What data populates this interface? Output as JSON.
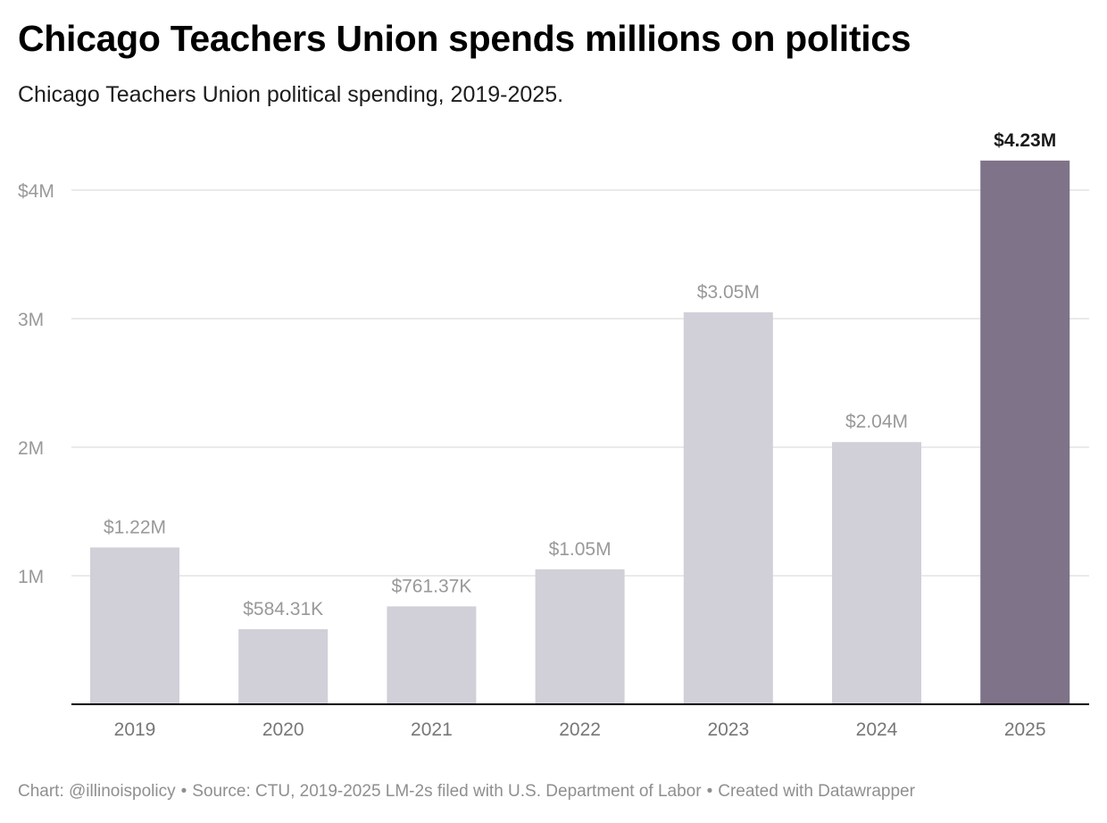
{
  "header": {
    "title": "Chicago Teachers Union spends millions on politics",
    "subtitle": "Chicago Teachers Union political spending, 2019-2025."
  },
  "footer": {
    "credit": "Chart: @illinoispolicy",
    "source": "Source: CTU, 2019-2025 LM-2s filed with U.S. Department of Labor",
    "tool": "Created with Datawrapper",
    "separator": "•"
  },
  "colors": {
    "bar_default": "#d1cfd8",
    "bar_highlight": "#7e7389",
    "gridline": "#e3e3e3",
    "baseline": "#000000",
    "axis_text": "#999999",
    "label_default": "#999999",
    "label_highlight": "#1a1a1a"
  },
  "chart_data": {
    "type": "bar",
    "title": "Chicago Teachers Union spends millions on politics",
    "subtitle": "Chicago Teachers Union political spending, 2019-2025.",
    "categories": [
      "2019",
      "2020",
      "2021",
      "2022",
      "2023",
      "2024",
      "2025"
    ],
    "values": [
      1220000,
      584310,
      761370,
      1050000,
      3050000,
      2040000,
      4230000
    ],
    "data_labels": [
      "$1.22M",
      "$584.31K",
      "$761.37K",
      "$1.05M",
      "$3.05M",
      "$2.04M",
      "$4.23M"
    ],
    "highlight": "2025",
    "y_ticks": [
      1000000,
      2000000,
      3000000,
      4000000
    ],
    "y_tick_labels": [
      "1M",
      "2M",
      "3M",
      "$4M"
    ],
    "ylim": [
      0,
      4000000
    ],
    "grid": true,
    "legend": "none",
    "xlabel": "",
    "ylabel": ""
  }
}
